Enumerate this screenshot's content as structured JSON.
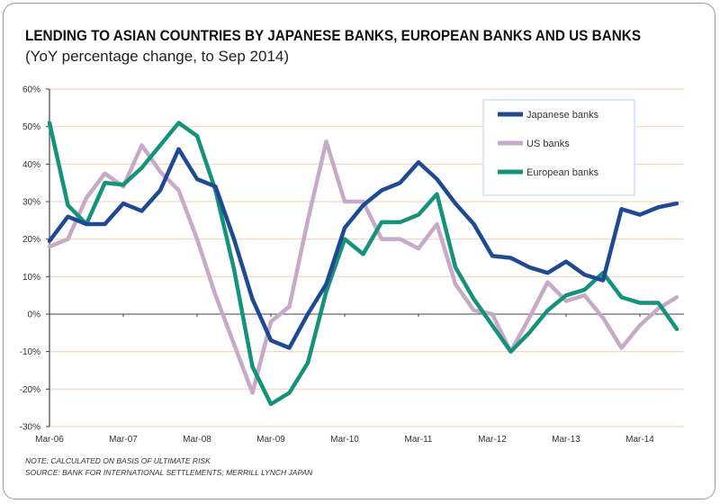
{
  "chart_data": {
    "type": "line",
    "title": "LENDING TO ASIAN COUNTRIES BY JAPANESE BANKS, EUROPEAN BANKS AND US BANKS",
    "subtitle": "(YoY percentage change, to Sep 2014)",
    "xlabel": "",
    "ylabel": "",
    "ylim": [
      -30,
      60
    ],
    "yticks": [
      "60%",
      "50%",
      "40%",
      "30%",
      "20%",
      "10%",
      "0%",
      "-10%",
      "-20%",
      "-30%"
    ],
    "ytick_values": [
      60,
      50,
      40,
      30,
      20,
      10,
      0,
      -10,
      -20,
      -30
    ],
    "xtick_labels": [
      "Mar-06",
      "Mar-07",
      "Mar-08",
      "Mar-09",
      "Mar-10",
      "Mar-11",
      "Mar-12",
      "Mar-13",
      "Mar-14"
    ],
    "x_frequency": "quarterly, Mar-06 to Sep-14",
    "grid": true,
    "legend_position": "top-right",
    "series": [
      {
        "name": "Japanese banks",
        "color": "#1f4a93",
        "values": [
          19.5,
          26,
          24,
          24,
          29.5,
          27.5,
          33,
          44,
          36,
          34,
          20,
          4,
          -7,
          -9,
          0,
          8,
          23,
          29,
          33,
          35,
          40.5,
          36,
          29.5,
          24,
          15.5,
          15,
          12.5,
          11,
          14,
          10.5,
          9,
          28,
          26.5,
          28.5,
          29.5
        ]
      },
      {
        "name": "US banks",
        "color": "#c7a9c8",
        "values": [
          18,
          20,
          31,
          37.5,
          34,
          45,
          38,
          33,
          20,
          5,
          -8,
          -21,
          -2,
          2,
          25,
          46,
          30,
          30,
          20,
          20,
          17.5,
          24,
          8,
          1,
          0,
          -10,
          -1,
          8.5,
          3.5,
          5,
          -1,
          -9,
          -3,
          1.5,
          4.5
        ]
      },
      {
        "name": "European banks",
        "color": "#14937a",
        "values": [
          51,
          29,
          24,
          35,
          34.5,
          39,
          45,
          51,
          47.5,
          33,
          12,
          -14,
          -24,
          -21,
          -13,
          6,
          20,
          16,
          24.5,
          24.5,
          26.5,
          32,
          12.5,
          4,
          -3,
          -10,
          -5,
          1,
          5,
          6.5,
          11,
          4.5,
          3,
          3,
          -4
        ]
      }
    ]
  },
  "notes": {
    "note": "NOTE: CALCULATED ON BASIS OF ULTIMATE RISK",
    "source": "SOURCE: BANK FOR INTERNATIONAL SETTLEMENTS; MERRILL LYNCH JAPAN"
  }
}
